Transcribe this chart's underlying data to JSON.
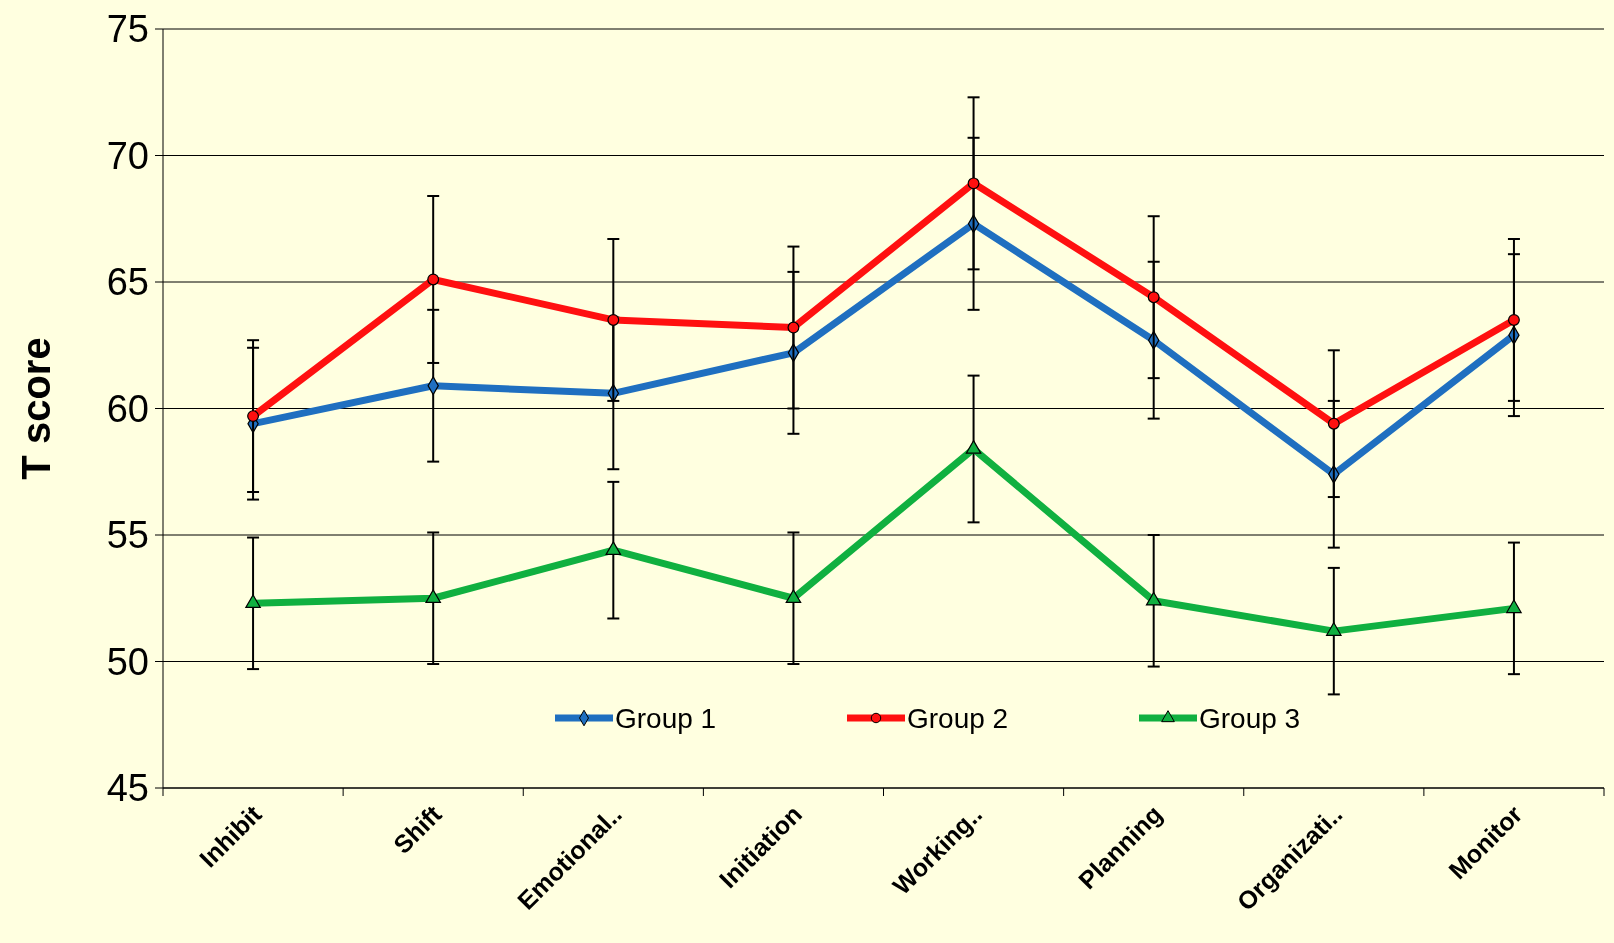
{
  "chart_data": {
    "type": "line",
    "ylabel": "T score",
    "categories": [
      "Inhibit",
      "Shift",
      "Emotional..",
      "Initiation",
      "Working..",
      "Planning",
      "Organizati..",
      "Monitor"
    ],
    "series": [
      {
        "name": "Group 1",
        "color": "#1f6fc0",
        "marker": "diamond",
        "values": [
          59.4,
          60.9,
          60.6,
          62.2,
          67.3,
          62.7,
          57.4,
          62.9
        ],
        "errors": [
          3.0,
          3.0,
          3.0,
          3.2,
          3.4,
          3.1,
          2.9,
          3.2
        ]
      },
      {
        "name": "Group 2",
        "color": "#ff1010",
        "marker": "circle",
        "values": [
          59.7,
          65.1,
          63.5,
          63.2,
          68.9,
          64.4,
          59.4,
          63.5
        ],
        "errors": [
          3.0,
          3.3,
          3.2,
          3.2,
          3.4,
          3.2,
          2.9,
          3.2
        ]
      },
      {
        "name": "Group 3",
        "color": "#10b040",
        "marker": "triangle",
        "values": [
          52.3,
          52.5,
          54.4,
          52.5,
          58.4,
          52.4,
          51.2,
          52.1
        ],
        "errors": [
          2.6,
          2.6,
          2.7,
          2.6,
          2.9,
          2.6,
          2.5,
          2.6
        ]
      }
    ],
    "ylim": [
      45,
      75
    ],
    "yticks": [
      45,
      50,
      55,
      60,
      65,
      70,
      75
    ],
    "grid": "y",
    "legend": "bottom",
    "line_style": "solid"
  }
}
